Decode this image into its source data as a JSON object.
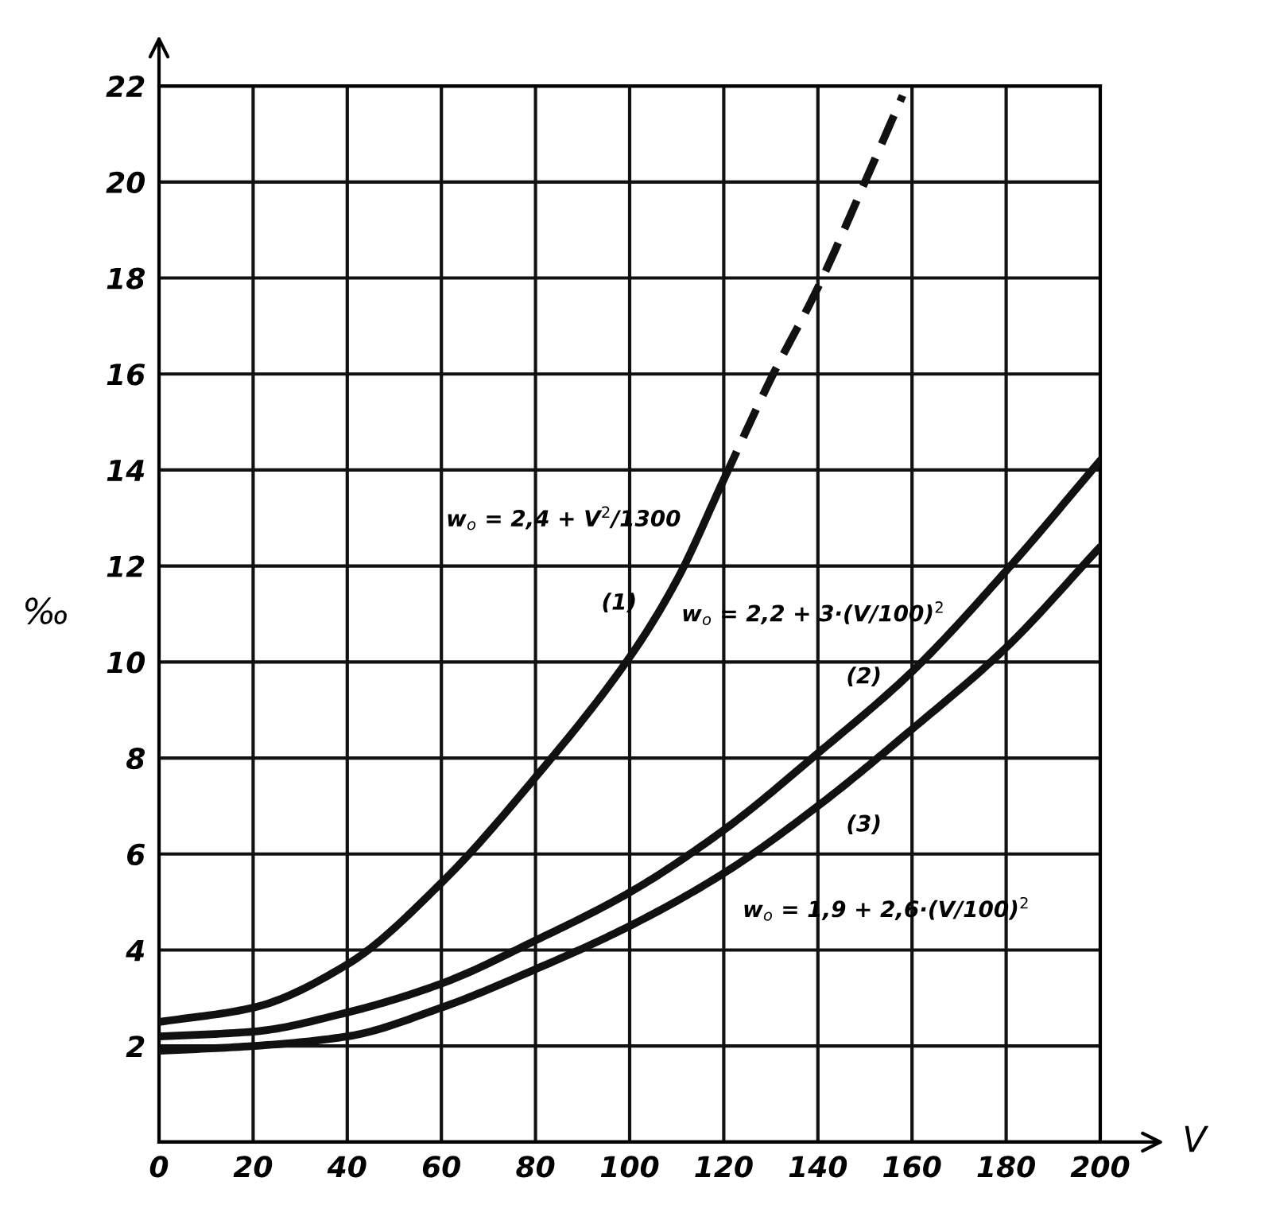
{
  "chart_data": {
    "type": "line",
    "xlabel": "V",
    "ylabel": "‰",
    "xlim": [
      0,
      200
    ],
    "xticks": [
      0,
      20,
      40,
      60,
      80,
      100,
      120,
      140,
      160,
      180,
      200
    ],
    "ylim": [
      0,
      22
    ],
    "yticks": [
      {
        "value": 0,
        "label": null
      },
      2,
      4,
      6,
      8,
      10,
      12,
      14,
      16,
      18,
      20,
      22
    ],
    "grid": true,
    "marker": "none",
    "series": [
      {
        "color": "#111111",
        "line_style": "solid",
        "x": [
          0,
          20,
          40,
          60,
          80,
          100,
          110,
          120
        ],
        "values": [
          2.5,
          2.8,
          3.7,
          5.4,
          7.6,
          10.1,
          11.7,
          13.8
        ]
      },
      {
        "color": "#111111",
        "line_style": "dashed",
        "x": [
          120,
          130,
          140,
          150,
          158
        ],
        "values": [
          13.8,
          15.9,
          17.8,
          20,
          21.8
        ]
      },
      {
        "color": "#111111",
        "line_style": "solid",
        "x": [
          0,
          20,
          40,
          60,
          80,
          100,
          120,
          140,
          160,
          180,
          200
        ],
        "values": [
          2.2,
          2.3,
          2.7,
          3.3,
          4.2,
          5.2,
          6.5,
          8.1,
          9.8,
          11.9,
          14.2
        ]
      },
      {
        "color": "#111111",
        "line_style": "solid",
        "x": [
          0,
          20,
          40,
          60,
          80,
          100,
          120,
          140,
          160,
          180,
          200
        ],
        "values": [
          1.9,
          2.0,
          2.2,
          2.8,
          3.6,
          4.5,
          5.6,
          7.0,
          8.6,
          10.3,
          12.4
        ]
      }
    ],
    "annotations": [
      "w$_{o}$ = 2,4 + V$^{2}$/1300",
      "(1)",
      "w$_{o}$ = 2,2 + 3·(V/100)$^{2}$",
      "(2)",
      "(3)",
      "w$_{o}$ = 1,9 + 2,6·(V/100)$^{2}$"
    ]
  }
}
